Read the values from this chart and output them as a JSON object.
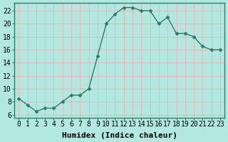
{
  "x": [
    0,
    1,
    2,
    3,
    4,
    5,
    6,
    7,
    8,
    9,
    10,
    11,
    12,
    13,
    14,
    15,
    16,
    17,
    18,
    19,
    20,
    21,
    22,
    23
  ],
  "y": [
    8.5,
    7.5,
    6.5,
    7.0,
    7.0,
    8.0,
    9.0,
    9.0,
    10.0,
    15.0,
    20.0,
    21.5,
    22.5,
    22.5,
    22.0,
    22.0,
    20.0,
    21.0,
    18.5,
    18.5,
    18.0,
    16.5,
    16.0,
    16.0
  ],
  "line_color": "#2d7b6e",
  "marker": "D",
  "marker_size": 2.5,
  "bg_color": "#b3e8e0",
  "grid_color": "#e8b8b8",
  "xlabel": "Humidex (Indice chaleur)",
  "ylabel": "",
  "title": "",
  "xlim": [
    -0.5,
    23.5
  ],
  "ylim": [
    5.5,
    23.2
  ],
  "xticks": [
    0,
    1,
    2,
    3,
    4,
    5,
    6,
    7,
    8,
    9,
    10,
    11,
    12,
    13,
    14,
    15,
    16,
    17,
    18,
    19,
    20,
    21,
    22,
    23
  ],
  "yticks": [
    6,
    8,
    10,
    12,
    14,
    16,
    18,
    20,
    22
  ],
  "xlabel_fontsize": 8,
  "tick_fontsize": 7
}
